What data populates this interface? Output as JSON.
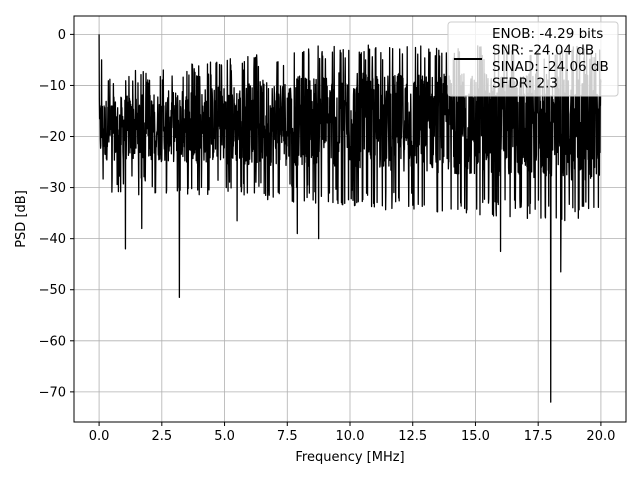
{
  "chart_data": {
    "type": "line",
    "title": "",
    "xlabel": "Frequency [MHz]",
    "ylabel": "PSD [dB]",
    "xlim": [
      -1.0,
      21.0
    ],
    "ylim": [
      -75.9,
      3.6
    ],
    "xticks": [
      0.0,
      2.5,
      5.0,
      7.5,
      10.0,
      12.5,
      15.0,
      17.5,
      20.0
    ],
    "xtick_labels": [
      "0.0",
      "2.5",
      "5.0",
      "7.5",
      "10.0",
      "12.5",
      "15.0",
      "17.5",
      "20.0"
    ],
    "yticks": [
      0,
      -10,
      -20,
      -30,
      -40,
      -50,
      -60,
      -70
    ],
    "ytick_labels": [
      "0",
      "−10",
      "−20",
      "−30",
      "−40",
      "−50",
      "−60",
      "−70"
    ],
    "grid": true,
    "legend_position": "top-right",
    "legend_lines": [
      "ENOB: -4.29 bits",
      "SNR: -24.04 dB",
      "SINAD: -24.06 dB",
      "SFDR: 2.3"
    ],
    "series": [
      {
        "color": "#000000",
        "x_range": [
          0.0,
          20.0
        ],
        "noise_band_upper": [
          -11,
          -5
        ],
        "noise_band_lower": [
          -27,
          -33
        ],
        "peaks": [
          {
            "x": 0.0,
            "y": 0.0
          },
          {
            "x": 0.1,
            "y": -5.0
          }
        ],
        "notches": [
          {
            "x": 1.05,
            "y": -42.0
          },
          {
            "x": 1.7,
            "y": -38.0
          },
          {
            "x": 3.2,
            "y": -51.5
          },
          {
            "x": 5.5,
            "y": -36.5
          },
          {
            "x": 7.9,
            "y": -39.0
          },
          {
            "x": 8.75,
            "y": -40.0
          },
          {
            "x": 16.0,
            "y": -42.5
          },
          {
            "x": 18.0,
            "y": -72.0
          },
          {
            "x": 18.4,
            "y": -46.5
          }
        ]
      }
    ]
  }
}
